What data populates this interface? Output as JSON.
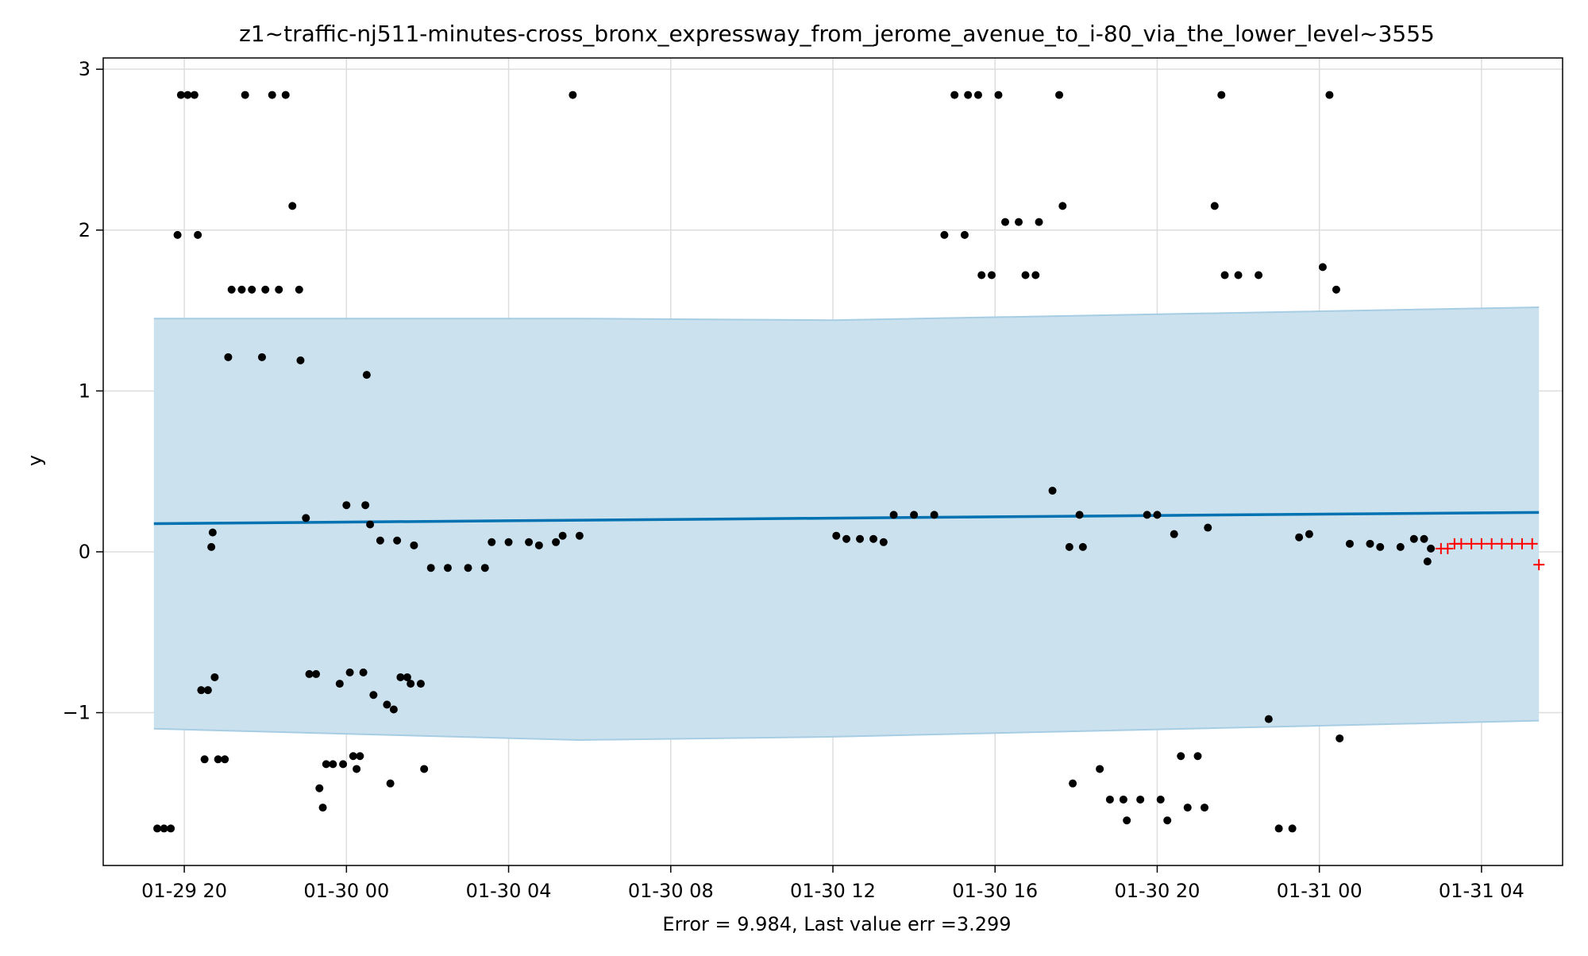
{
  "chart_data": {
    "type": "scatter",
    "title": "z1~traffic-nj511-minutes-cross_bronx_expressway_from_jerome_avenue_to_i-80_via_the_lower_level~3555",
    "xlabel": "Error = 9.984, Last value err =3.299",
    "ylabel": "y",
    "xlim": [
      "2025-01-29 18:00",
      "2025-01-31 06:00"
    ],
    "ylim": [
      -1.95,
      3.07
    ],
    "grid": true,
    "x_ticks": [
      "01-29 20",
      "01-30 00",
      "01-30 04",
      "01-30 08",
      "01-30 12",
      "01-30 16",
      "01-30 20",
      "01-31 00",
      "01-31 04"
    ],
    "y_ticks": [
      -1,
      0,
      1,
      2,
      3
    ],
    "colors": {
      "forecast_line": "#0072b2",
      "interval_fill": "#cce1ee",
      "interval_edge": "#a6cde3",
      "observed": "#000000",
      "future": "#ff0000",
      "grid": "#dddddd"
    },
    "series": [
      {
        "kind": "observed",
        "points": [
          [
            "2025-01-29 19:20",
            -1.72
          ],
          [
            "2025-01-29 19:30",
            -1.72
          ],
          [
            "2025-01-29 19:40",
            -1.72
          ],
          [
            "2025-01-29 19:50",
            1.97
          ],
          [
            "2025-01-29 19:55",
            2.84
          ],
          [
            "2025-01-29 20:05",
            2.84
          ],
          [
            "2025-01-29 20:15",
            2.84
          ],
          [
            "2025-01-29 20:20",
            1.97
          ],
          [
            "2025-01-29 20:25",
            -0.86
          ],
          [
            "2025-01-29 20:35",
            -0.86
          ],
          [
            "2025-01-29 20:30",
            -1.29
          ],
          [
            "2025-01-29 20:40",
            0.03
          ],
          [
            "2025-01-29 20:42",
            0.12
          ],
          [
            "2025-01-29 20:45",
            -0.78
          ],
          [
            "2025-01-29 20:50",
            -1.29
          ],
          [
            "2025-01-29 21:00",
            -1.29
          ],
          [
            "2025-01-29 21:05",
            1.21
          ],
          [
            "2025-01-29 21:10",
            1.63
          ],
          [
            "2025-01-29 21:25",
            1.63
          ],
          [
            "2025-01-29 21:30",
            2.84
          ],
          [
            "2025-01-29 21:40",
            1.63
          ],
          [
            "2025-01-29 21:55",
            1.21
          ],
          [
            "2025-01-29 22:00",
            1.63
          ],
          [
            "2025-01-29 22:10",
            2.84
          ],
          [
            "2025-01-29 22:20",
            1.63
          ],
          [
            "2025-01-29 22:30",
            2.84
          ],
          [
            "2025-01-29 22:40",
            2.15
          ],
          [
            "2025-01-29 22:50",
            1.63
          ],
          [
            "2025-01-29 22:52",
            1.19
          ],
          [
            "2025-01-29 23:00",
            0.21
          ],
          [
            "2025-01-29 23:05",
            -0.76
          ],
          [
            "2025-01-29 23:15",
            -0.76
          ],
          [
            "2025-01-29 23:20",
            -1.47
          ],
          [
            "2025-01-29 23:25",
            -1.59
          ],
          [
            "2025-01-29 23:30",
            -1.32
          ],
          [
            "2025-01-29 23:40",
            -1.32
          ],
          [
            "2025-01-29 23:50",
            -0.82
          ],
          [
            "2025-01-29 23:55",
            -1.32
          ],
          [
            "2025-01-30 00:00",
            0.29
          ],
          [
            "2025-01-30 00:05",
            -0.75
          ],
          [
            "2025-01-30 00:10",
            -1.27
          ],
          [
            "2025-01-30 00:15",
            -1.35
          ],
          [
            "2025-01-30 00:20",
            -1.27
          ],
          [
            "2025-01-30 00:25",
            -0.75
          ],
          [
            "2025-01-30 00:28",
            0.29
          ],
          [
            "2025-01-30 00:30",
            1.1
          ],
          [
            "2025-01-30 00:35",
            0.17
          ],
          [
            "2025-01-30 00:40",
            -0.89
          ],
          [
            "2025-01-30 00:50",
            0.07
          ],
          [
            "2025-01-30 01:00",
            -0.95
          ],
          [
            "2025-01-30 01:05",
            -1.44
          ],
          [
            "2025-01-30 01:10",
            -0.98
          ],
          [
            "2025-01-30 01:15",
            0.07
          ],
          [
            "2025-01-30 01:20",
            -0.78
          ],
          [
            "2025-01-30 01:30",
            -0.78
          ],
          [
            "2025-01-30 01:35",
            -0.82
          ],
          [
            "2025-01-30 01:40",
            0.04
          ],
          [
            "2025-01-30 01:50",
            -0.82
          ],
          [
            "2025-01-30 01:55",
            -1.35
          ],
          [
            "2025-01-30 02:05",
            -0.1
          ],
          [
            "2025-01-30 02:30",
            -0.1
          ],
          [
            "2025-01-30 03:00",
            -0.1
          ],
          [
            "2025-01-30 03:25",
            -0.1
          ],
          [
            "2025-01-30 03:35",
            0.06
          ],
          [
            "2025-01-30 04:00",
            0.06
          ],
          [
            "2025-01-30 04:30",
            0.06
          ],
          [
            "2025-01-30 04:45",
            0.04
          ],
          [
            "2025-01-30 05:10",
            0.06
          ],
          [
            "2025-01-30 05:20",
            0.1
          ],
          [
            "2025-01-30 05:35",
            2.84
          ],
          [
            "2025-01-30 05:45",
            0.1
          ],
          [
            "2025-01-30 12:05",
            0.1
          ],
          [
            "2025-01-30 12:20",
            0.08
          ],
          [
            "2025-01-30 12:40",
            0.08
          ],
          [
            "2025-01-30 13:00",
            0.08
          ],
          [
            "2025-01-30 13:15",
            0.06
          ],
          [
            "2025-01-30 13:30",
            0.23
          ],
          [
            "2025-01-30 14:00",
            0.23
          ],
          [
            "2025-01-30 14:30",
            0.23
          ],
          [
            "2025-01-30 14:45",
            1.97
          ],
          [
            "2025-01-30 15:00",
            2.84
          ],
          [
            "2025-01-30 15:15",
            1.97
          ],
          [
            "2025-01-30 15:20",
            2.84
          ],
          [
            "2025-01-30 15:35",
            2.84
          ],
          [
            "2025-01-30 15:40",
            1.72
          ],
          [
            "2025-01-30 15:55",
            1.72
          ],
          [
            "2025-01-30 16:05",
            2.84
          ],
          [
            "2025-01-30 16:15",
            2.05
          ],
          [
            "2025-01-30 16:35",
            2.05
          ],
          [
            "2025-01-30 16:45",
            1.72
          ],
          [
            "2025-01-30 17:00",
            1.72
          ],
          [
            "2025-01-30 17:05",
            2.05
          ],
          [
            "2025-01-30 17:25",
            0.38
          ],
          [
            "2025-01-30 17:35",
            2.84
          ],
          [
            "2025-01-30 17:40",
            2.15
          ],
          [
            "2025-01-30 17:50",
            0.03
          ],
          [
            "2025-01-30 17:55",
            -1.44
          ],
          [
            "2025-01-30 18:05",
            0.23
          ],
          [
            "2025-01-30 18:10",
            0.03
          ],
          [
            "2025-01-30 18:35",
            -1.35
          ],
          [
            "2025-01-30 18:50",
            -1.54
          ],
          [
            "2025-01-30 19:10",
            -1.54
          ],
          [
            "2025-01-30 19:15",
            -1.67
          ],
          [
            "2025-01-30 19:35",
            -1.54
          ],
          [
            "2025-01-30 19:45",
            0.23
          ],
          [
            "2025-01-30 20:00",
            0.23
          ],
          [
            "2025-01-30 20:05",
            -1.54
          ],
          [
            "2025-01-30 20:15",
            -1.67
          ],
          [
            "2025-01-30 20:25",
            0.11
          ],
          [
            "2025-01-30 20:35",
            -1.27
          ],
          [
            "2025-01-30 20:45",
            -1.59
          ],
          [
            "2025-01-30 21:00",
            -1.27
          ],
          [
            "2025-01-30 21:10",
            -1.59
          ],
          [
            "2025-01-30 21:15",
            0.15
          ],
          [
            "2025-01-30 21:25",
            2.15
          ],
          [
            "2025-01-30 21:35",
            2.84
          ],
          [
            "2025-01-30 21:40",
            1.72
          ],
          [
            "2025-01-30 22:00",
            1.72
          ],
          [
            "2025-01-30 22:30",
            1.72
          ],
          [
            "2025-01-30 22:45",
            -1.04
          ],
          [
            "2025-01-30 23:00",
            -1.72
          ],
          [
            "2025-01-30 23:20",
            -1.72
          ],
          [
            "2025-01-30 23:30",
            0.09
          ],
          [
            "2025-01-30 23:45",
            0.11
          ],
          [
            "2025-01-31 00:05",
            1.77
          ],
          [
            "2025-01-31 00:15",
            2.84
          ],
          [
            "2025-01-31 00:25",
            1.63
          ],
          [
            "2025-01-31 00:30",
            -1.16
          ],
          [
            "2025-01-31 00:45",
            0.05
          ],
          [
            "2025-01-31 01:15",
            0.05
          ],
          [
            "2025-01-31 01:30",
            0.03
          ],
          [
            "2025-01-31 02:00",
            0.03
          ],
          [
            "2025-01-31 02:20",
            0.08
          ],
          [
            "2025-01-31 02:35",
            0.08
          ],
          [
            "2025-01-31 02:40",
            -0.06
          ],
          [
            "2025-01-31 02:45",
            0.02
          ]
        ]
      },
      {
        "kind": "future",
        "points": [
          [
            "2025-01-31 03:00",
            0.02
          ],
          [
            "2025-01-31 03:10",
            0.02
          ],
          [
            "2025-01-31 03:20",
            0.05
          ],
          [
            "2025-01-31 03:30",
            0.05
          ],
          [
            "2025-01-31 03:45",
            0.05
          ],
          [
            "2025-01-31 04:00",
            0.05
          ],
          [
            "2025-01-31 04:15",
            0.05
          ],
          [
            "2025-01-31 04:30",
            0.05
          ],
          [
            "2025-01-31 04:45",
            0.05
          ],
          [
            "2025-01-31 05:00",
            0.05
          ],
          [
            "2025-01-31 05:15",
            0.05
          ],
          [
            "2025-01-31 05:25",
            -0.08
          ]
        ]
      },
      {
        "kind": "forecast",
        "points": [
          [
            "2025-01-29 19:15",
            0.175
          ],
          [
            "2025-01-31 05:25",
            0.245
          ]
        ]
      },
      {
        "kind": "interval",
        "upper": [
          [
            "2025-01-29 19:15",
            1.45
          ],
          [
            "2025-01-30 05:45",
            1.45
          ],
          [
            "2025-01-30 12:00",
            1.44
          ],
          [
            "2025-01-31 05:25",
            1.52
          ]
        ],
        "lower": [
          [
            "2025-01-29 19:15",
            -1.1
          ],
          [
            "2025-01-30 05:45",
            -1.17
          ],
          [
            "2025-01-30 12:00",
            -1.15
          ],
          [
            "2025-01-31 05:25",
            -1.05
          ]
        ]
      }
    ]
  }
}
